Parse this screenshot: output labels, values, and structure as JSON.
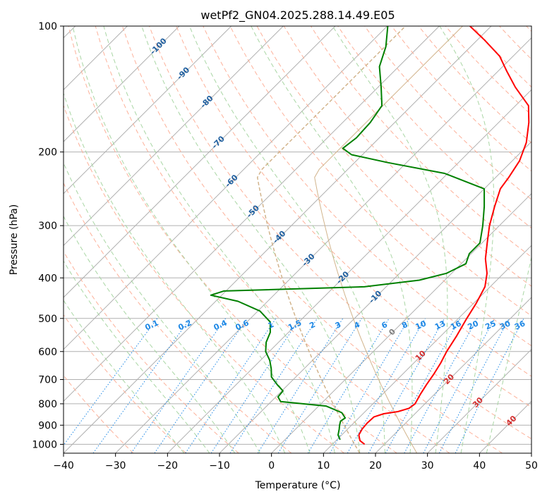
{
  "chart_data": {
    "type": "skew-t",
    "title": "wetPf2_GN04.2025.288.14.49.E05",
    "xlabel": "Temperature (°C)",
    "ylabel": "Pressure (hPa)",
    "xlim": [
      -40,
      50
    ],
    "ylim": [
      1050,
      100
    ],
    "x_ticks": [
      -40,
      -30,
      -20,
      -10,
      0,
      10,
      20,
      30,
      40,
      50
    ],
    "x_tick_labels": [
      "−40",
      "−30",
      "−20",
      "−10",
      "0",
      "10",
      "20",
      "30",
      "40",
      "50"
    ],
    "y_ticks": [
      100,
      200,
      300,
      400,
      500,
      600,
      700,
      800,
      900,
      1000
    ],
    "y_tick_labels": [
      "100",
      "200",
      "300",
      "400",
      "500",
      "600",
      "700",
      "800",
      "900",
      "1000"
    ],
    "grid": true,
    "colors": {
      "temperature": "#ff0000",
      "dewpoint": "#008000",
      "isotherm": "#b0b0b0",
      "dry_adiabat": "#fdb19a",
      "moist_adiabat": "#a9d6a4",
      "mixing_ratio": "#1e88e5",
      "isotherm_label": "#1f5f9f",
      "adiabat_label": "#d32f2f",
      "zero_label": "#808080",
      "standard_atmosphere": "#d2b48c"
    },
    "series": [
      {
        "name": "Temperature",
        "color": "#ff0000",
        "points": [
          {
            "p": 1000,
            "t": 16.2
          },
          {
            "p": 980,
            "t": 14.6
          },
          {
            "p": 950,
            "t": 13.3
          },
          {
            "p": 920,
            "t": 12.8
          },
          {
            "p": 890,
            "t": 12.6
          },
          {
            "p": 860,
            "t": 12.7
          },
          {
            "p": 845,
            "t": 14.0
          },
          {
            "p": 835,
            "t": 16.3
          },
          {
            "p": 820,
            "t": 17.8
          },
          {
            "p": 800,
            "t": 18.1
          },
          {
            "p": 760,
            "t": 17.3
          },
          {
            "p": 720,
            "t": 16.6
          },
          {
            "p": 680,
            "t": 16.0
          },
          {
            "p": 640,
            "t": 15.2
          },
          {
            "p": 600,
            "t": 14.1
          },
          {
            "p": 550,
            "t": 13.0
          },
          {
            "p": 500,
            "t": 11.6
          },
          {
            "p": 460,
            "t": 10.5
          },
          {
            "p": 420,
            "t": 9.0
          },
          {
            "p": 390,
            "t": 6.8
          },
          {
            "p": 360,
            "t": 3.7
          },
          {
            "p": 330,
            "t": 1.0
          },
          {
            "p": 300,
            "t": -1.9
          },
          {
            "p": 270,
            "t": -4.6
          },
          {
            "p": 245,
            "t": -6.9
          },
          {
            "p": 230,
            "t": -7.5
          },
          {
            "p": 210,
            "t": -8.6
          },
          {
            "p": 190,
            "t": -10.8
          },
          {
            "p": 170,
            "t": -14.2
          },
          {
            "p": 155,
            "t": -17.5
          },
          {
            "p": 140,
            "t": -23.6
          },
          {
            "p": 128,
            "t": -28.4
          },
          {
            "p": 118,
            "t": -32.6
          },
          {
            "p": 108,
            "t": -38.6
          },
          {
            "p": 100,
            "t": -44.1
          }
        ]
      },
      {
        "name": "Dewpoint",
        "color": "#008000",
        "points": [
          {
            "p": 975,
            "t": 10.6
          },
          {
            "p": 950,
            "t": 9.3
          },
          {
            "p": 920,
            "t": 8.4
          },
          {
            "p": 900,
            "t": 7.7
          },
          {
            "p": 880,
            "t": 7.1
          },
          {
            "p": 865,
            "t": 7.4
          },
          {
            "p": 840,
            "t": 5.7
          },
          {
            "p": 810,
            "t": 1.4
          },
          {
            "p": 790,
            "t": -8.2
          },
          {
            "p": 770,
            "t": -9.6
          },
          {
            "p": 745,
            "t": -9.8
          },
          {
            "p": 720,
            "t": -12.1
          },
          {
            "p": 690,
            "t": -14.7
          },
          {
            "p": 660,
            "t": -16.3
          },
          {
            "p": 630,
            "t": -18.2
          },
          {
            "p": 600,
            "t": -20.7
          },
          {
            "p": 570,
            "t": -22.4
          },
          {
            "p": 540,
            "t": -23.5
          },
          {
            "p": 510,
            "t": -25.5
          },
          {
            "p": 480,
            "t": -29.6
          },
          {
            "p": 455,
            "t": -35.7
          },
          {
            "p": 440,
            "t": -42.1
          },
          {
            "p": 430,
            "t": -40.4
          },
          {
            "p": 420,
            "t": -14.2
          },
          {
            "p": 405,
            "t": -4.9
          },
          {
            "p": 390,
            "t": -1.0
          },
          {
            "p": 370,
            "t": 0.9
          },
          {
            "p": 350,
            "t": -0.4
          },
          {
            "p": 330,
            "t": -0.4
          },
          {
            "p": 300,
            "t": -3.2
          },
          {
            "p": 270,
            "t": -6.6
          },
          {
            "p": 245,
            "t": -10.0
          },
          {
            "p": 225,
            "t": -20.6
          },
          {
            "p": 212,
            "t": -33.6
          },
          {
            "p": 203,
            "t": -42.1
          },
          {
            "p": 196,
            "t": -45.0
          },
          {
            "p": 185,
            "t": -44.4
          },
          {
            "p": 170,
            "t": -44.7
          },
          {
            "p": 155,
            "t": -45.7
          },
          {
            "p": 140,
            "t": -49.4
          },
          {
            "p": 125,
            "t": -53.7
          },
          {
            "p": 112,
            "t": -56.3
          },
          {
            "p": 100,
            "t": -59.9
          }
        ]
      }
    ],
    "isotherm_labels": [
      {
        "text": "-100",
        "t": -100
      },
      {
        "text": "-90",
        "t": -90
      },
      {
        "text": "-80",
        "t": -80
      },
      {
        "text": "-70",
        "t": -70
      },
      {
        "text": "-60",
        "t": -60
      },
      {
        "text": "-50",
        "t": -50
      },
      {
        "text": "-40",
        "t": -40
      },
      {
        "text": "-30",
        "t": -30
      },
      {
        "text": "-20",
        "t": -20
      },
      {
        "text": "-10",
        "t": -10
      },
      {
        "text": "0",
        "t": 0
      },
      {
        "text": "10",
        "t": 10
      },
      {
        "text": "20",
        "t": 20
      },
      {
        "text": "30",
        "t": 30
      },
      {
        "text": "40",
        "t": 40
      }
    ],
    "mixing_ratio_labels": [
      "0.1",
      "0.2",
      "0.4",
      "0.6",
      "1",
      "1.5",
      "2",
      "3",
      "4",
      "6",
      "8",
      "10",
      "13",
      "16",
      "20",
      "25",
      "30",
      "36"
    ],
    "mixing_ratio_values": [
      0.1,
      0.2,
      0.4,
      0.6,
      1,
      1.5,
      2,
      3,
      4,
      6,
      8,
      10,
      13,
      16,
      20,
      25,
      30,
      36
    ]
  }
}
